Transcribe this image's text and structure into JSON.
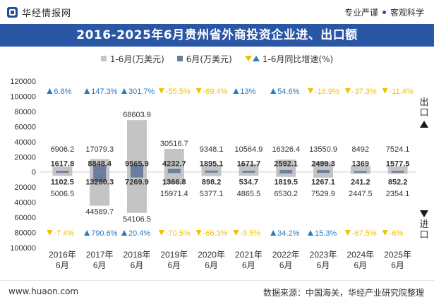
{
  "header": {
    "site_name": "华经情报网",
    "slogan_left": "专业严谨",
    "slogan_right": "客观科学"
  },
  "title": "2016-2025年6月贵州省外商投资企业进、出口额",
  "legend": {
    "cumulative": "1-6月(万美元)",
    "monthly": "6月(万美元)",
    "yoy": "1-6月同比增速(%)"
  },
  "side_labels": {
    "export": "出口",
    "import": "进口"
  },
  "footer": {
    "website": "www.huaon.com",
    "source": "数据来源：中国海关，华经产业研究院整理"
  },
  "colors": {
    "title_bg": "#2a56a6",
    "cumulative_bar": "#c4c4c4",
    "monthly_bar": "#6a7d9e",
    "positive_growth": "#2b7bbf",
    "negative_growth": "#f2c200"
  },
  "chart_data": {
    "type": "bar",
    "title": "2016-2025年6月贵州省外商投资企业进、出口额",
    "categories": [
      "2016年\n6月",
      "2017年\n6月",
      "2018年\n6月",
      "2019年\n6月",
      "2020年\n6月",
      "2021年\n6月",
      "2022年\n6月",
      "2023年\n6月",
      "2024年\n6月",
      "2025年\n6月"
    ],
    "ylim": [
      -100000,
      120000
    ],
    "yticks": [
      -100000,
      -80000,
      -60000,
      -40000,
      -20000,
      0,
      20000,
      40000,
      60000,
      80000,
      100000,
      120000
    ],
    "ytick_labels": [
      "100000",
      "80000",
      "60000",
      "40000",
      "20000",
      "0",
      "20000",
      "40000",
      "60000",
      "80000",
      "100000",
      "120000"
    ],
    "export_cumulative": [
      6906.2,
      17079.3,
      68603.9,
      30516.7,
      9348.1,
      10564.9,
      16326.4,
      13550.9,
      8492,
      7524.1
    ],
    "export_monthly": [
      1617.8,
      8848.4,
      9565.9,
      4232.7,
      1895.1,
      1671.7,
      2592.1,
      2499.3,
      1369,
      1577.5
    ],
    "import_cumulative": [
      5006.5,
      44589.7,
      54106.5,
      15971.4,
      5377.1,
      4865.5,
      6530.2,
      7529.9,
      2447.5,
      2354.1
    ],
    "import_monthly": [
      1102.5,
      13280.3,
      7269.9,
      1366.8,
      898.2,
      534.7,
      1819.5,
      1267.1,
      241.2,
      852.2
    ],
    "export_cumulative_labels": [
      "6906.2",
      "17079.3",
      "68603.9",
      "30516.7",
      "9348.1",
      "10564.9",
      "16326.4",
      "13550.9",
      "8492",
      "7524.1"
    ],
    "export_monthly_labels": [
      "1617.8",
      "8848.4",
      "9565.9",
      "4232.7",
      "1895.1",
      "1671.7",
      "2592.1",
      "2499.3",
      "1369",
      "1577.5"
    ],
    "import_cumulative_labels": [
      "5006.5",
      "44589.7",
      "54106.5",
      "15971.4",
      "5377.1",
      "4865.5",
      "6530.2",
      "7529.9",
      "2447.5",
      "2354.1"
    ],
    "import_monthly_labels": [
      "1102.5",
      "13280.3",
      "7269.9",
      "1366.8",
      "898.2",
      "534.7",
      "1819.5",
      "1267.1",
      "241.2",
      "852.2"
    ],
    "export_yoy": [
      6.8,
      147.3,
      301.7,
      -55.5,
      -69.4,
      13,
      54.6,
      -16.9,
      -37.3,
      -11.4
    ],
    "export_yoy_labels": [
      "6.8%",
      "147.3%",
      "301.7%",
      "-55.5%",
      "-69.4%",
      "13%",
      "54.6%",
      "-16.9%",
      "-37.3%",
      "-11.4%"
    ],
    "import_yoy": [
      -7.4,
      790.6,
      20.4,
      -70.5,
      -66.3,
      -9.5,
      34.2,
      15.3,
      -67.5,
      -6
    ],
    "import_yoy_labels": [
      "-7.4%",
      "790.6%",
      "20.4%",
      "-70.5%",
      "-66.3%",
      "-9.5%",
      "34.2%",
      "15.3%",
      "-67.5%",
      "-6%"
    ]
  }
}
